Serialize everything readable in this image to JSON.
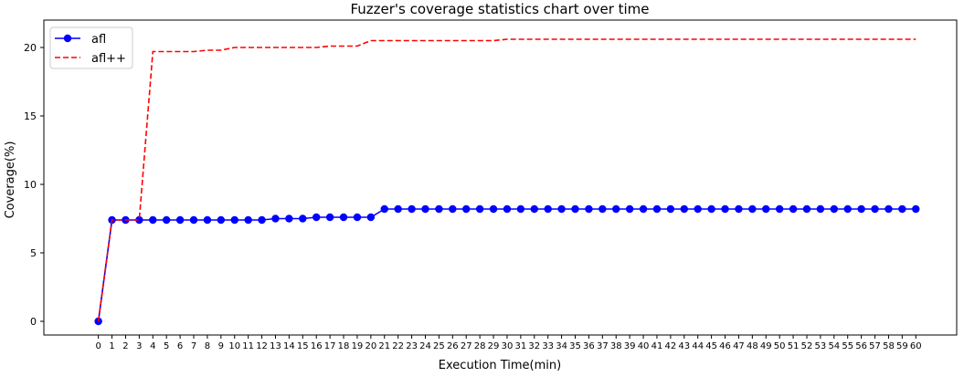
{
  "chart_data": {
    "type": "line",
    "title": "Fuzzer's coverage statistics chart over time",
    "xlabel": "Execution Time(min)",
    "ylabel": "Coverage(%)",
    "x": [
      0,
      1,
      2,
      3,
      4,
      5,
      6,
      7,
      8,
      9,
      10,
      11,
      12,
      13,
      14,
      15,
      16,
      17,
      18,
      19,
      20,
      21,
      22,
      23,
      24,
      25,
      26,
      27,
      28,
      29,
      30,
      31,
      32,
      33,
      34,
      35,
      36,
      37,
      38,
      39,
      40,
      41,
      42,
      43,
      44,
      45,
      46,
      47,
      48,
      49,
      50,
      51,
      52,
      53,
      54,
      55,
      56,
      57,
      58,
      59,
      60
    ],
    "xticks": [
      "0",
      "1",
      "2",
      "3",
      "4",
      "5",
      "6",
      "7",
      "8",
      "9",
      "10",
      "11",
      "12",
      "13",
      "14",
      "15",
      "16",
      "17",
      "18",
      "19",
      "20",
      "21",
      "22",
      "23",
      "24",
      "25",
      "26",
      "27",
      "28",
      "29",
      "30",
      "31",
      "32",
      "33",
      "34",
      "35",
      "36",
      "37",
      "38",
      "39",
      "40",
      "41",
      "42",
      "43",
      "44",
      "45",
      "46",
      "47",
      "48",
      "49",
      "50",
      "51",
      "52",
      "53",
      "54",
      "55",
      "56",
      "57",
      "58",
      "59",
      "60"
    ],
    "yticks": [
      "0",
      "5",
      "10",
      "15",
      "20"
    ],
    "xlim": [
      -4,
      63
    ],
    "ylim": [
      -1,
      22
    ],
    "legend_position": "top-left",
    "grid": false,
    "series": [
      {
        "name": "afl",
        "color": "#0000ff",
        "line_style": "solid",
        "marker": "circle",
        "values": [
          0,
          7.4,
          7.4,
          7.4,
          7.4,
          7.4,
          7.4,
          7.4,
          7.4,
          7.4,
          7.4,
          7.4,
          7.4,
          7.5,
          7.5,
          7.5,
          7.6,
          7.6,
          7.6,
          7.6,
          7.6,
          8.2,
          8.2,
          8.2,
          8.2,
          8.2,
          8.2,
          8.2,
          8.2,
          8.2,
          8.2,
          8.2,
          8.2,
          8.2,
          8.2,
          8.2,
          8.2,
          8.2,
          8.2,
          8.2,
          8.2,
          8.2,
          8.2,
          8.2,
          8.2,
          8.2,
          8.2,
          8.2,
          8.2,
          8.2,
          8.2,
          8.2,
          8.2,
          8.2,
          8.2,
          8.2,
          8.2,
          8.2,
          8.2,
          8.2,
          8.2
        ]
      },
      {
        "name": "afl++",
        "color": "#ff0000",
        "line_style": "dashed",
        "marker": "none",
        "values": [
          0,
          7.4,
          7.4,
          7.4,
          19.7,
          19.7,
          19.7,
          19.7,
          19.8,
          19.8,
          20.0,
          20.0,
          20.0,
          20.0,
          20.0,
          20.0,
          20.0,
          20.1,
          20.1,
          20.1,
          20.5,
          20.5,
          20.5,
          20.5,
          20.5,
          20.5,
          20.5,
          20.5,
          20.5,
          20.5,
          20.6,
          20.6,
          20.6,
          20.6,
          20.6,
          20.6,
          20.6,
          20.6,
          20.6,
          20.6,
          20.6,
          20.6,
          20.6,
          20.6,
          20.6,
          20.6,
          20.6,
          20.6,
          20.6,
          20.6,
          20.6,
          20.6,
          20.6,
          20.6,
          20.6,
          20.6,
          20.6,
          20.6,
          20.6,
          20.6,
          20.6
        ]
      }
    ]
  }
}
